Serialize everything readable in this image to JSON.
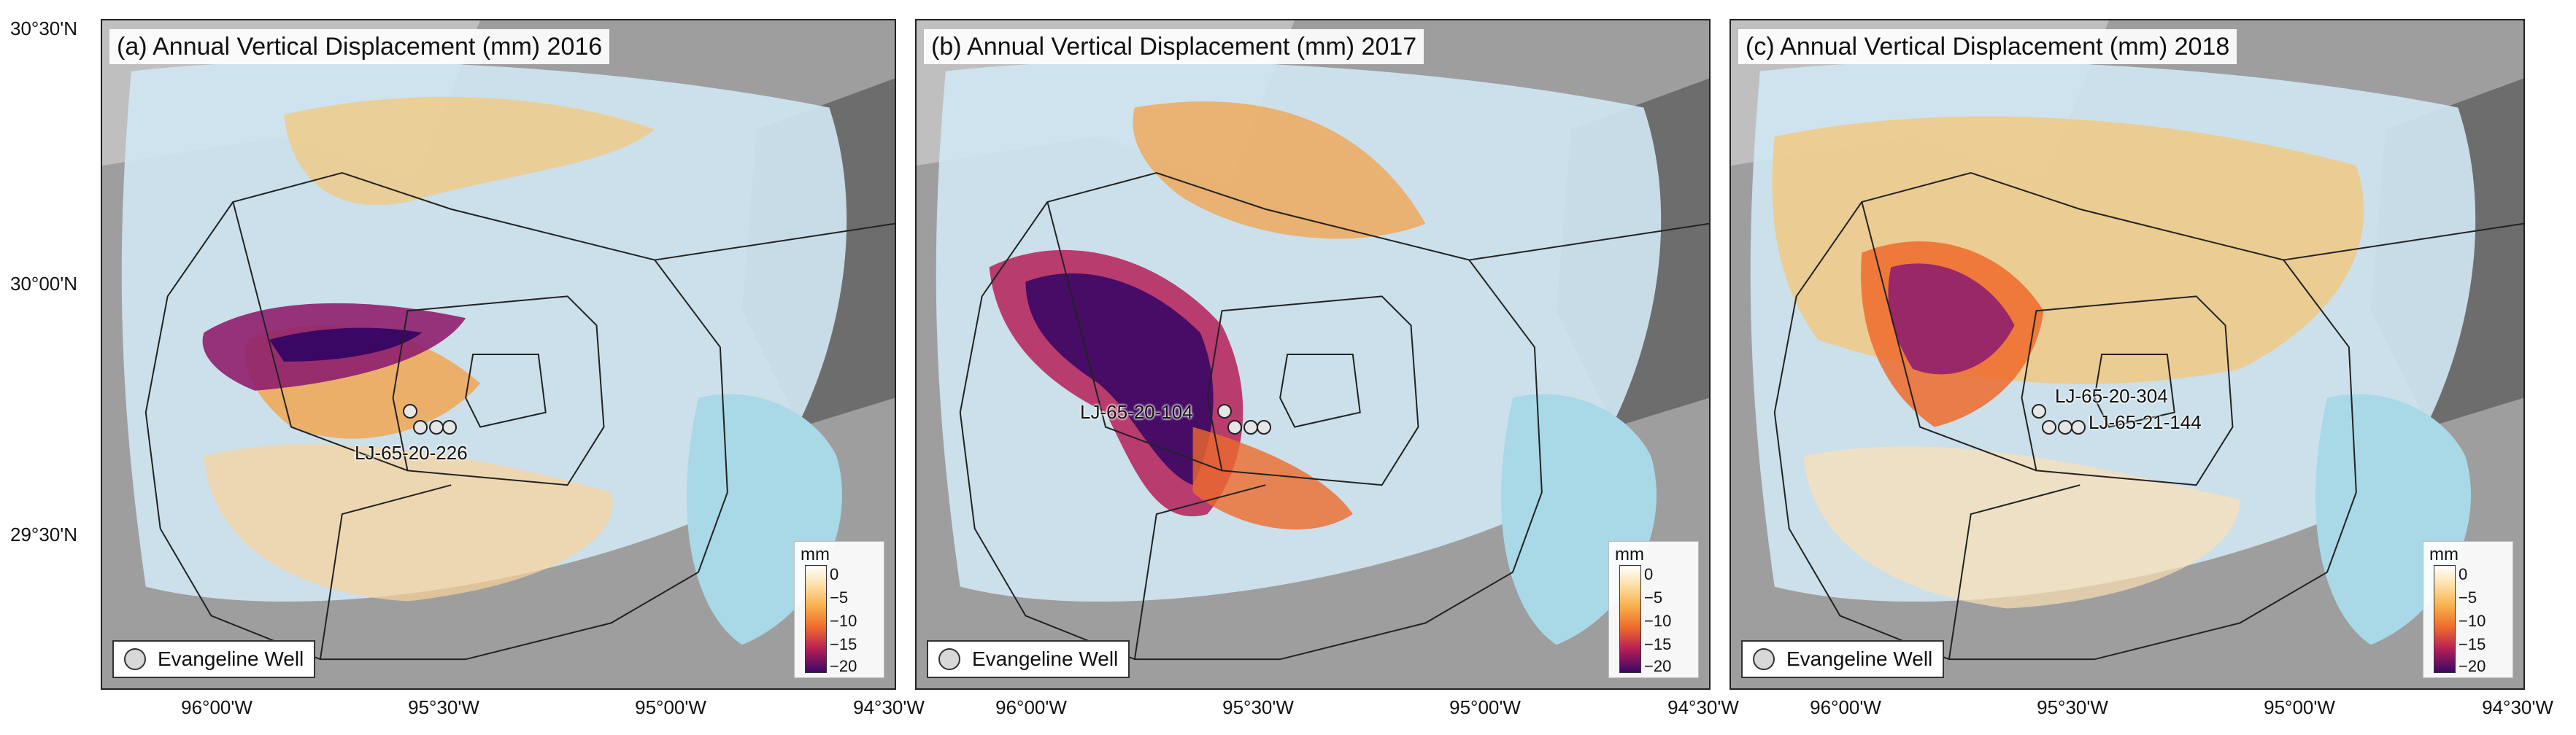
{
  "panels": [
    {
      "title": "(a) Annual Vertical Displacement (mm) 2016",
      "well_label": "LJ-65-20-226"
    },
    {
      "title": "(b) Annual Vertical Displacement (mm) 2017",
      "well_label": "LJ-65-20-104"
    },
    {
      "title": "(c) Annual Vertical Displacement (mm) 2018",
      "well_label_1": "LJ-65-20-304",
      "well_label_2": "LJ-65-21-144"
    }
  ],
  "legend": {
    "label": "Evangeline Well"
  },
  "colorbar": {
    "unit": "mm",
    "ticks": [
      "0",
      "−5",
      "−10",
      "−15",
      "−20"
    ],
    "range": [
      -20,
      0
    ],
    "colors": [
      "#ffffff",
      "#fde0a8",
      "#f7b04a",
      "#ee6a2c",
      "#b51f57",
      "#3b0764"
    ]
  },
  "axes": {
    "y_ticks": [
      "30°30'N",
      "30°00'N",
      "29°30'N"
    ],
    "x_ticks": [
      "96°00'W",
      "95°30'W",
      "95°00'W",
      "94°30'W"
    ]
  }
}
